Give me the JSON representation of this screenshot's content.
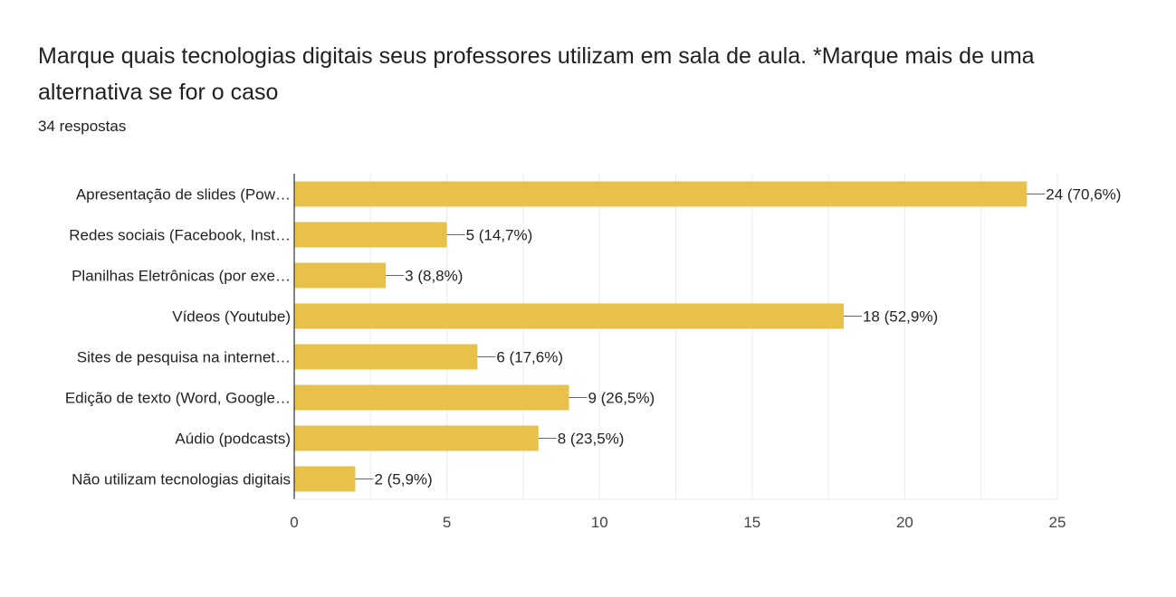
{
  "header": {
    "title": "Marque quais tecnologias digitais seus professores utilizam em sala de aula.  *Marque mais de uma alternativa se for o caso",
    "responses": "34 respostas"
  },
  "colors": {
    "bar": "#e8c14a",
    "grid": "#ebebeb",
    "axis": "#333333",
    "leader": "#666666"
  },
  "chart_data": {
    "type": "bar",
    "orientation": "horizontal",
    "categories": [
      "Apresentação de slides (Pow…",
      "Redes sociais (Facebook, Inst…",
      "Planilhas Eletrônicas (por exe…",
      "Vídeos (Youtube)",
      "Sites de pesquisa na internet…",
      "Edição de texto (Word, Google…",
      "Aúdio (podcasts)",
      "Não utilizam tecnologias digitais"
    ],
    "values": [
      24,
      5,
      3,
      18,
      6,
      9,
      8,
      2
    ],
    "data_labels": [
      "24 (70,6%)",
      "5 (14,7%)",
      "3 (8,8%)",
      "18 (52,9%)",
      "6 (17,6%)",
      "9 (26,5%)",
      "8 (23,5%)",
      "2 (5,9%)"
    ],
    "xlim": [
      0,
      25
    ],
    "xticks": [
      0,
      5,
      10,
      15,
      20,
      25
    ],
    "grid": true,
    "legend": "none"
  }
}
